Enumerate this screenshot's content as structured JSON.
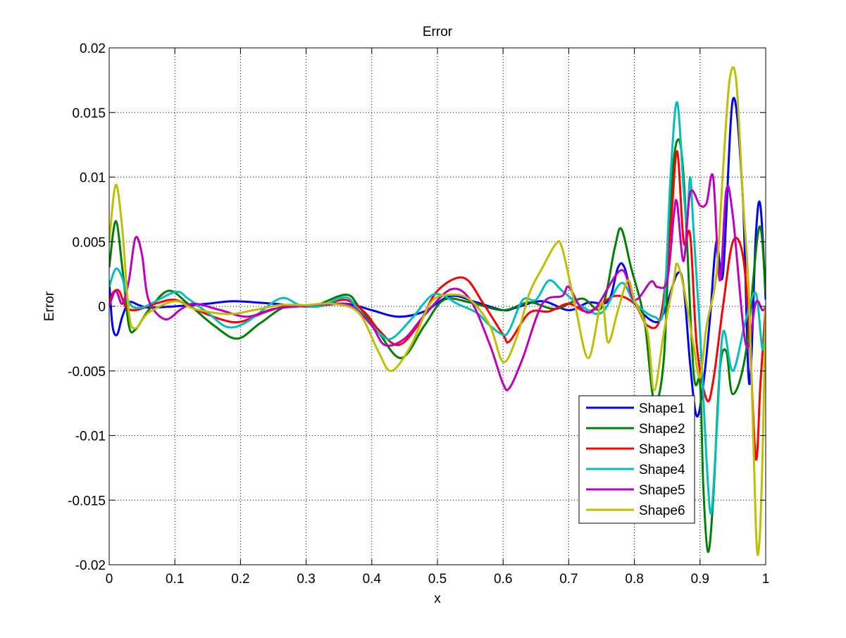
{
  "chart_data": {
    "type": "line",
    "title": "Error",
    "xlabel": "x",
    "ylabel": "Error",
    "xlim": [
      0,
      1
    ],
    "ylim": [
      -0.02,
      0.02
    ],
    "xticks": [
      0,
      0.1,
      0.2,
      0.3,
      0.4,
      0.5,
      0.6,
      0.7,
      0.8,
      0.9,
      1
    ],
    "xtick_labels": [
      "0",
      "0.1",
      "0.2",
      "0.3",
      "0.4",
      "0.5",
      "0.6",
      "0.7",
      "0.8",
      "0.9",
      "1"
    ],
    "yticks": [
      -0.02,
      -0.015,
      -0.01,
      -0.005,
      0,
      0.005,
      0.01,
      0.015,
      0.02
    ],
    "ytick_labels": [
      "-0.02",
      "-0.015",
      "-0.01",
      "-0.005",
      "0",
      "0.005",
      "0.01",
      "0.015",
      "0.02"
    ],
    "grid": true,
    "legend_position": "lower-right",
    "series": [
      {
        "name": "Shape1",
        "color": "#0000ff",
        "points": [
          [
            0,
            0.002
          ],
          [
            0.005,
            -0.0015
          ],
          [
            0.012,
            -0.0022
          ],
          [
            0.02,
            -0.0008
          ],
          [
            0.03,
            0.0003
          ],
          [
            0.045,
            0.0001
          ],
          [
            0.06,
            -0.0001
          ],
          [
            0.1,
            0
          ],
          [
            0.15,
            0.0002
          ],
          [
            0.19,
            0.0004
          ],
          [
            0.25,
            0.0002
          ],
          [
            0.3,
            0
          ],
          [
            0.36,
            0.0002
          ],
          [
            0.4,
            -0.0003
          ],
          [
            0.44,
            -0.0008
          ],
          [
            0.48,
            -0.0004
          ],
          [
            0.52,
            0.0008
          ],
          [
            0.56,
            0.0003
          ],
          [
            0.6,
            -0.0003
          ],
          [
            0.62,
            -0.0001
          ],
          [
            0.66,
            0.0004
          ],
          [
            0.7,
            -0.0003
          ],
          [
            0.73,
            0.0003
          ],
          [
            0.76,
            0.0004
          ],
          [
            0.775,
            0.003
          ],
          [
            0.785,
            0.003
          ],
          [
            0.8,
            0.0003
          ],
          [
            0.83,
            -0.0012
          ],
          [
            0.845,
            -0.0005
          ],
          [
            0.865,
            0.0025
          ],
          [
            0.875,
            0.0015
          ],
          [
            0.885,
            -0.0045
          ],
          [
            0.895,
            -0.0085
          ],
          [
            0.905,
            -0.006
          ],
          [
            0.915,
            -0.001
          ],
          [
            0.925,
            0.005
          ],
          [
            0.935,
            0.0025
          ],
          [
            0.95,
            0.016
          ],
          [
            0.965,
            0.0085
          ],
          [
            0.975,
            -0.006
          ],
          [
            0.985,
            0.0055
          ],
          [
            0.992,
            0.0078
          ],
          [
            1,
            0.0005
          ]
        ]
      },
      {
        "name": "Shape2",
        "color": "#008000",
        "points": [
          [
            0,
            0.003
          ],
          [
            0.01,
            0.0066
          ],
          [
            0.02,
            0.003
          ],
          [
            0.03,
            -0.0015
          ],
          [
            0.04,
            -0.0018
          ],
          [
            0.06,
            -0.0003
          ],
          [
            0.09,
            0.0012
          ],
          [
            0.12,
            0.0002
          ],
          [
            0.16,
            -0.0015
          ],
          [
            0.195,
            -0.0025
          ],
          [
            0.23,
            -0.0013
          ],
          [
            0.27,
            0
          ],
          [
            0.31,
            0
          ],
          [
            0.36,
            0.0009
          ],
          [
            0.38,
            0
          ],
          [
            0.41,
            -0.002
          ],
          [
            0.445,
            -0.004
          ],
          [
            0.48,
            -0.0015
          ],
          [
            0.51,
            0.0005
          ],
          [
            0.55,
            0.0003
          ],
          [
            0.6,
            -0.0003
          ],
          [
            0.64,
            0.0003
          ],
          [
            0.68,
            -0.0002
          ],
          [
            0.72,
            0.0006
          ],
          [
            0.75,
            -0.0001
          ],
          [
            0.77,
            0.0045
          ],
          [
            0.78,
            0.006
          ],
          [
            0.795,
            0.003
          ],
          [
            0.815,
            -0.001
          ],
          [
            0.83,
            -0.0073
          ],
          [
            0.845,
            -0.004
          ],
          [
            0.855,
            0.008
          ],
          [
            0.865,
            0.0128
          ],
          [
            0.875,
            0.01
          ],
          [
            0.89,
            -0.005
          ],
          [
            0.9,
            -0.006
          ],
          [
            0.905,
            -0.014
          ],
          [
            0.912,
            -0.019
          ],
          [
            0.92,
            -0.015
          ],
          [
            0.93,
            -0.005
          ],
          [
            0.94,
            -0.0035
          ],
          [
            0.95,
            -0.0068
          ],
          [
            0.97,
            -0.0035
          ],
          [
            0.99,
            0.0061
          ],
          [
            1,
            0.001
          ]
        ]
      },
      {
        "name": "Shape3",
        "color": "#ff0000",
        "points": [
          [
            0,
            0
          ],
          [
            0.005,
            0.001
          ],
          [
            0.015,
            0.0012
          ],
          [
            0.025,
            0
          ],
          [
            0.04,
            -0.0003
          ],
          [
            0.07,
            0.0002
          ],
          [
            0.1,
            0.0005
          ],
          [
            0.13,
            -0.0002
          ],
          [
            0.17,
            -0.001
          ],
          [
            0.2,
            -0.0012
          ],
          [
            0.24,
            -0.0004
          ],
          [
            0.28,
            0.0001
          ],
          [
            0.32,
            0
          ],
          [
            0.36,
            0.0005
          ],
          [
            0.39,
            -0.0005
          ],
          [
            0.41,
            -0.0018
          ],
          [
            0.44,
            -0.003
          ],
          [
            0.47,
            -0.0015
          ],
          [
            0.5,
            0.0012
          ],
          [
            0.54,
            0.0022
          ],
          [
            0.57,
            0.0002
          ],
          [
            0.6,
            -0.0022
          ],
          [
            0.61,
            -0.0027
          ],
          [
            0.64,
            -0.0005
          ],
          [
            0.67,
            -0.0004
          ],
          [
            0.7,
            0.0002
          ],
          [
            0.73,
            -0.0004
          ],
          [
            0.77,
            0.0008
          ],
          [
            0.8,
            0.0002
          ],
          [
            0.82,
            -0.0015
          ],
          [
            0.84,
            -0.0008
          ],
          [
            0.855,
            0.006
          ],
          [
            0.865,
            0.012
          ],
          [
            0.875,
            0.005
          ],
          [
            0.885,
            0.0055
          ],
          [
            0.895,
            -0.003
          ],
          [
            0.91,
            -0.0072
          ],
          [
            0.92,
            -0.0058
          ],
          [
            0.935,
            0
          ],
          [
            0.95,
            0.005
          ],
          [
            0.965,
            0.004
          ],
          [
            0.975,
            -0.002
          ],
          [
            0.985,
            -0.0118
          ],
          [
            0.992,
            -0.006
          ],
          [
            1,
            0
          ]
        ]
      },
      {
        "name": "Shape4",
        "color": "#00bfbf",
        "points": [
          [
            0,
            0.0015
          ],
          [
            0.01,
            0.0029
          ],
          [
            0.02,
            0.0022
          ],
          [
            0.03,
            0.0003
          ],
          [
            0.05,
            -0.0001
          ],
          [
            0.1,
            0.0011
          ],
          [
            0.12,
            0.0006
          ],
          [
            0.15,
            -0.0005
          ],
          [
            0.18,
            -0.0016
          ],
          [
            0.21,
            -0.0012
          ],
          [
            0.26,
            0.0006
          ],
          [
            0.29,
            0.0001
          ],
          [
            0.32,
            0
          ],
          [
            0.36,
            0.0007
          ],
          [
            0.38,
            -0.0003
          ],
          [
            0.41,
            -0.002
          ],
          [
            0.43,
            -0.0025
          ],
          [
            0.46,
            -0.001
          ],
          [
            0.49,
            0.0008
          ],
          [
            0.51,
            0.0008
          ],
          [
            0.53,
            0.0002
          ],
          [
            0.56,
            -0.0005
          ],
          [
            0.58,
            -0.0015
          ],
          [
            0.6,
            -0.0022
          ],
          [
            0.61,
            -0.0018
          ],
          [
            0.63,
            0.0005
          ],
          [
            0.65,
            0.0005
          ],
          [
            0.67,
            0.002
          ],
          [
            0.69,
            0.0012
          ],
          [
            0.72,
            0
          ],
          [
            0.75,
            -0.0005
          ],
          [
            0.78,
            0.0018
          ],
          [
            0.8,
            0.0003
          ],
          [
            0.83,
            -0.0008
          ],
          [
            0.845,
            0
          ],
          [
            0.855,
            0.01
          ],
          [
            0.865,
            0.0158
          ],
          [
            0.875,
            0.009
          ],
          [
            0.88,
            0.0065
          ],
          [
            0.885,
            0.01
          ],
          [
            0.89,
            0.006
          ],
          [
            0.9,
            -0.002
          ],
          [
            0.91,
            -0.012
          ],
          [
            0.917,
            -0.016
          ],
          [
            0.925,
            -0.01
          ],
          [
            0.935,
            -0.002
          ],
          [
            0.95,
            -0.005
          ],
          [
            0.97,
            -0.001
          ],
          [
            0.985,
            0.001
          ],
          [
            0.995,
            -0.0033
          ],
          [
            1,
            -0.001
          ]
        ]
      },
      {
        "name": "Shape5",
        "color": "#bf00bf",
        "points": [
          [
            0,
            0
          ],
          [
            0.01,
            0.0012
          ],
          [
            0.02,
            0.0002
          ],
          [
            0.03,
            0.002
          ],
          [
            0.04,
            0.0053
          ],
          [
            0.05,
            0.004
          ],
          [
            0.06,
            0.0005
          ],
          [
            0.085,
            -0.001
          ],
          [
            0.11,
            -0.0002
          ],
          [
            0.13,
            0.0002
          ],
          [
            0.17,
            -0.0003
          ],
          [
            0.21,
            -0.0008
          ],
          [
            0.25,
            -0.0002
          ],
          [
            0.29,
            0
          ],
          [
            0.34,
            0.0002
          ],
          [
            0.37,
            0
          ],
          [
            0.4,
            -0.0015
          ],
          [
            0.42,
            -0.003
          ],
          [
            0.45,
            -0.0025
          ],
          [
            0.48,
            -0.0007
          ],
          [
            0.52,
            0.0013
          ],
          [
            0.55,
            0.0005
          ],
          [
            0.58,
            -0.003
          ],
          [
            0.6,
            -0.006
          ],
          [
            0.61,
            -0.0063
          ],
          [
            0.63,
            -0.004
          ],
          [
            0.66,
            0.0002
          ],
          [
            0.69,
            0.0008
          ],
          [
            0.7,
            0.0015
          ],
          [
            0.72,
            -0.0002
          ],
          [
            0.74,
            -0.0002
          ],
          [
            0.78,
            0.0028
          ],
          [
            0.8,
            0.0005
          ],
          [
            0.825,
            0.0019
          ],
          [
            0.835,
            0.0015
          ],
          [
            0.85,
            0.002
          ],
          [
            0.86,
            0.007
          ],
          [
            0.865,
            0.008
          ],
          [
            0.875,
            0.0035
          ],
          [
            0.885,
            0.0088
          ],
          [
            0.9,
            0.0078
          ],
          [
            0.91,
            0.008
          ],
          [
            0.92,
            0.01
          ],
          [
            0.93,
            0.002
          ],
          [
            0.94,
            0.009
          ],
          [
            0.95,
            0.007
          ],
          [
            0.97,
            -0.003
          ],
          [
            0.985,
            0.0003
          ],
          [
            0.995,
            -0.0003
          ],
          [
            1,
            0
          ]
        ]
      },
      {
        "name": "Shape6",
        "color": "#bfbf00",
        "points": [
          [
            0,
            0.005
          ],
          [
            0.01,
            0.0094
          ],
          [
            0.02,
            0.006
          ],
          [
            0.03,
            -0.0005
          ],
          [
            0.04,
            -0.0017
          ],
          [
            0.06,
            -0.0005
          ],
          [
            0.1,
            0.0004
          ],
          [
            0.13,
            -0.0002
          ],
          [
            0.18,
            -0.0006
          ],
          [
            0.22,
            -0.0003
          ],
          [
            0.26,
            0.0001
          ],
          [
            0.3,
            0.0001
          ],
          [
            0.34,
            0.0002
          ],
          [
            0.38,
            -0.0005
          ],
          [
            0.41,
            -0.0035
          ],
          [
            0.43,
            -0.005
          ],
          [
            0.46,
            -0.003
          ],
          [
            0.49,
            0.0003
          ],
          [
            0.52,
            0.0009
          ],
          [
            0.55,
            0.0005
          ],
          [
            0.58,
            -0.0015
          ],
          [
            0.6,
            -0.0043
          ],
          [
            0.62,
            -0.0025
          ],
          [
            0.64,
            0.001
          ],
          [
            0.66,
            0.003
          ],
          [
            0.68,
            0.0048
          ],
          [
            0.69,
            0.0045
          ],
          [
            0.71,
            0
          ],
          [
            0.73,
            -0.004
          ],
          [
            0.75,
            0.0003
          ],
          [
            0.76,
            -0.0028
          ],
          [
            0.775,
            -0.0003
          ],
          [
            0.79,
            0.002
          ],
          [
            0.8,
            0.0005
          ],
          [
            0.82,
            -0.002
          ],
          [
            0.83,
            -0.0065
          ],
          [
            0.845,
            -0.002
          ],
          [
            0.86,
            0.002
          ],
          [
            0.865,
            0.0033
          ],
          [
            0.875,
            0.0015
          ],
          [
            0.89,
            -0.003
          ],
          [
            0.9,
            -0.0055
          ],
          [
            0.91,
            -0.0015
          ],
          [
            0.925,
            0.0025
          ],
          [
            0.935,
            0.0105
          ],
          [
            0.945,
            0.0175
          ],
          [
            0.955,
            0.0175
          ],
          [
            0.965,
            0.0085
          ],
          [
            0.975,
            0.0002
          ],
          [
            0.985,
            -0.017
          ],
          [
            0.99,
            -0.0185
          ],
          [
            0.995,
            -0.012
          ],
          [
            1,
            0
          ]
        ]
      }
    ]
  }
}
